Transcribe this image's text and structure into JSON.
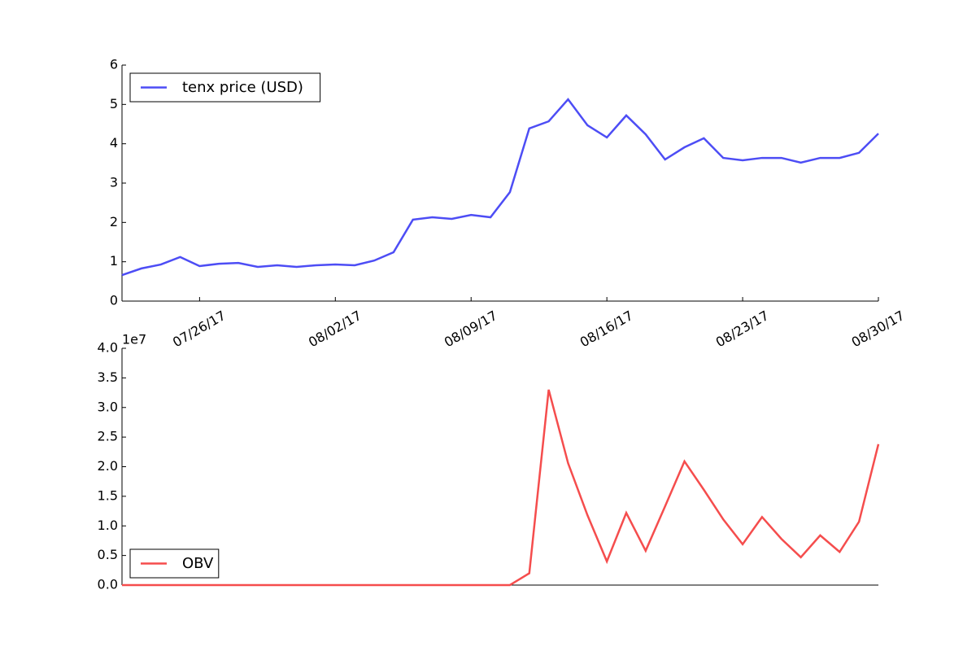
{
  "chart_data": [
    {
      "type": "line",
      "x": [
        "07/22/17",
        "07/23/17",
        "07/24/17",
        "07/25/17",
        "07/26/17",
        "07/27/17",
        "07/28/17",
        "07/29/17",
        "07/30/17",
        "07/31/17",
        "08/01/17",
        "08/02/17",
        "08/03/17",
        "08/04/17",
        "08/05/17",
        "08/06/17",
        "08/07/17",
        "08/08/17",
        "08/09/17",
        "08/10/17",
        "08/11/17",
        "08/12/17",
        "08/13/17",
        "08/14/17",
        "08/15/17",
        "08/16/17",
        "08/17/17",
        "08/18/17",
        "08/19/17",
        "08/20/17",
        "08/21/17",
        "08/22/17",
        "08/23/17",
        "08/24/17",
        "08/25/17",
        "08/26/17",
        "08/27/17",
        "08/28/17",
        "08/29/17",
        "08/30/17"
      ],
      "series": [
        {
          "name": "tenx price (USD)",
          "color": "#4d4df5",
          "values": [
            0.66,
            0.83,
            0.93,
            1.12,
            0.89,
            0.95,
            0.97,
            0.87,
            0.91,
            0.87,
            0.91,
            0.93,
            0.91,
            1.03,
            1.24,
            2.07,
            2.13,
            2.09,
            2.19,
            2.13,
            2.77,
            4.39,
            4.57,
            5.13,
            4.47,
            4.16,
            4.72,
            4.24,
            3.6,
            3.91,
            4.14,
            3.64,
            3.58,
            3.64,
            3.64,
            3.52,
            3.64,
            3.64,
            3.77,
            4.26
          ]
        }
      ],
      "xlim": [
        "07/22/17",
        "08/30/17"
      ],
      "xticks": [
        "07/26/17",
        "08/02/17",
        "08/09/17",
        "08/16/17",
        "08/23/17",
        "08/30/17"
      ],
      "ylim": [
        0,
        6
      ],
      "yticks": [
        0,
        1,
        2,
        3,
        4,
        5,
        6
      ],
      "legend": "upper left"
    },
    {
      "type": "line",
      "x": [
        "07/22/17",
        "07/23/17",
        "07/24/17",
        "07/25/17",
        "07/26/17",
        "07/27/17",
        "07/28/17",
        "07/29/17",
        "07/30/17",
        "07/31/17",
        "08/01/17",
        "08/02/17",
        "08/03/17",
        "08/04/17",
        "08/05/17",
        "08/06/17",
        "08/07/17",
        "08/08/17",
        "08/09/17",
        "08/10/17",
        "08/11/17",
        "08/12/17",
        "08/13/17",
        "08/14/17",
        "08/15/17",
        "08/16/17",
        "08/17/17",
        "08/18/17",
        "08/19/17",
        "08/20/17",
        "08/21/17",
        "08/22/17",
        "08/23/17",
        "08/24/17",
        "08/25/17",
        "08/26/17",
        "08/27/17",
        "08/28/17",
        "08/29/17",
        "08/30/17"
      ],
      "series": [
        {
          "name": "OBV",
          "color": "#f54d4d",
          "values": [
            0,
            0,
            0,
            0,
            0,
            0,
            0,
            0,
            0,
            0,
            0,
            0,
            0,
            0,
            0,
            0,
            0,
            0,
            0,
            0,
            0,
            2000000,
            33000000,
            20600000,
            11800000,
            4000000,
            12200000,
            5800000,
            13300000,
            20900000,
            16100000,
            11100000,
            6900000,
            11500000,
            7800000,
            4700000,
            8400000,
            5600000,
            10700000,
            23800000
          ]
        }
      ],
      "xlim": [
        "07/22/17",
        "08/30/17"
      ],
      "ylim": [
        0,
        40000000
      ],
      "yticks": [
        {
          "value": 0,
          "label": "0.0"
        },
        {
          "value": 5000000,
          "label": "0.5"
        },
        {
          "value": 10000000,
          "label": "1.0"
        },
        {
          "value": 15000000,
          "label": "1.5"
        },
        {
          "value": 20000000,
          "label": "2.0"
        },
        {
          "value": 25000000,
          "label": "2.5"
        },
        {
          "value": 30000000,
          "label": "3.0"
        },
        {
          "value": 35000000,
          "label": "3.5"
        },
        {
          "value": 40000000,
          "label": "4.0"
        }
      ],
      "y_offset_label": "1e7",
      "legend": "lower left"
    }
  ]
}
